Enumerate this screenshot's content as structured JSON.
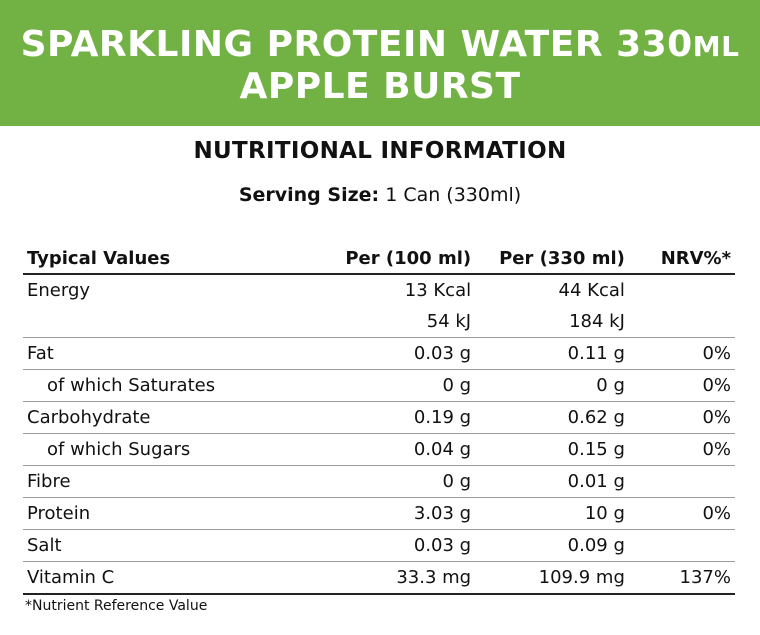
{
  "banner": {
    "line1_main": "SPARKLING PROTEIN WATER 330",
    "line1_unit": "ML",
    "line2": "APPLE BURST",
    "color": "#72b144"
  },
  "heading": "NUTRITIONAL INFORMATION",
  "serving": {
    "label": "Serving Size:",
    "value": "1 Can (330ml)"
  },
  "table": {
    "headers": [
      "Typical Values",
      "Per (100 ml)",
      "Per (330 ml)",
      "NRV%*"
    ],
    "rows": [
      {
        "name": "Energy",
        "per100": "13 Kcal",
        "per330": "44 Kcal",
        "nrv": ""
      },
      {
        "name": "",
        "per100": "54 kJ",
        "per330": "184 kJ",
        "nrv": ""
      },
      {
        "name": "Fat",
        "per100": "0.03 g",
        "per330": "0.11 g",
        "nrv": "0%"
      },
      {
        "name": "of which Saturates",
        "per100": "0 g",
        "per330": "0 g",
        "nrv": "0%"
      },
      {
        "name": "Carbohydrate",
        "per100": "0.19 g",
        "per330": "0.62 g",
        "nrv": "0%"
      },
      {
        "name": "of which Sugars",
        "per100": "0.04 g",
        "per330": "0.15 g",
        "nrv": "0%"
      },
      {
        "name": "Fibre",
        "per100": "0 g",
        "per330": "0.01 g",
        "nrv": ""
      },
      {
        "name": "Protein",
        "per100": "3.03 g",
        "per330": "10 g",
        "nrv": "0%"
      },
      {
        "name": "Salt",
        "per100": "0.03 g",
        "per330": "0.09 g",
        "nrv": ""
      },
      {
        "name": "Vitamin C",
        "per100": "33.3 mg",
        "per330": "109.9 mg",
        "nrv": "137%"
      }
    ]
  },
  "footnote": "*Nutrient Reference Value"
}
